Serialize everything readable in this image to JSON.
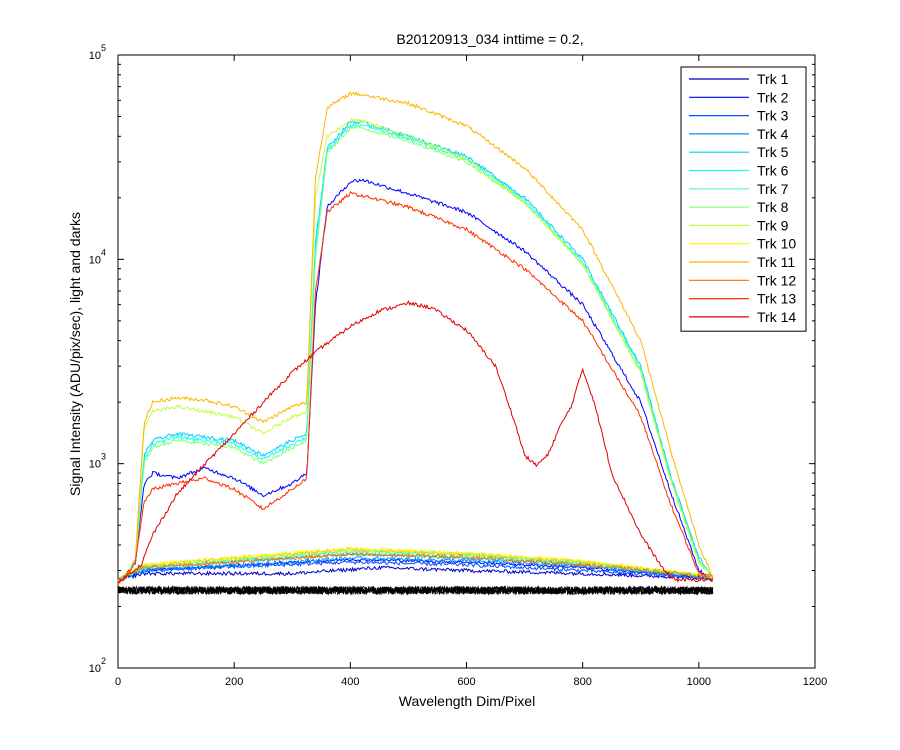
{
  "chart_data": {
    "type": "line",
    "title": "B20120913_034 inttime = 0.2,",
    "xlabel": "Wavelength Dim/Pixel",
    "ylabel": "Signal Intensity (ADU/pix/sec), light and darks",
    "xlim": [
      0,
      1200
    ],
    "ylim": [
      100,
      100000
    ],
    "yscale": "log",
    "grid": false,
    "legend_position": "top-right",
    "x_ticks": [
      "0",
      "200",
      "400",
      "600",
      "800",
      "1000",
      "1200"
    ],
    "y_ticks": [
      {
        "base": "10",
        "exp": "2"
      },
      {
        "base": "10",
        "exp": "3"
      },
      {
        "base": "10",
        "exp": "4"
      },
      {
        "base": "10",
        "exp": "5"
      }
    ],
    "series": [
      {
        "name": "Trk 1",
        "color": "#0000c8",
        "light_points": [
          [
            0,
            270
          ],
          [
            45,
            290
          ],
          [
            300,
            290
          ],
          [
            450,
            310
          ],
          [
            600,
            300
          ],
          [
            800,
            290
          ],
          [
            1024,
            275
          ]
        ]
      },
      {
        "name": "Trk 2",
        "color": "#0000ff",
        "light_points": [
          [
            0,
            260
          ],
          [
            20,
            300
          ],
          [
            30,
            330
          ],
          [
            45,
            800
          ],
          [
            60,
            900
          ],
          [
            100,
            850
          ],
          [
            150,
            950
          ],
          [
            200,
            850
          ],
          [
            250,
            700
          ],
          [
            300,
            800
          ],
          [
            325,
            900
          ],
          [
            340,
            6000
          ],
          [
            360,
            18000
          ],
          [
            400,
            24000
          ],
          [
            420,
            24500
          ],
          [
            500,
            21000
          ],
          [
            600,
            17000
          ],
          [
            700,
            11000
          ],
          [
            800,
            6000
          ],
          [
            900,
            2000
          ],
          [
            950,
            750
          ],
          [
            1000,
            300
          ],
          [
            1024,
            270
          ]
        ],
        "dark_points": [
          [
            0,
            270
          ],
          [
            45,
            300
          ],
          [
            400,
            340
          ],
          [
            600,
            330
          ],
          [
            800,
            310
          ],
          [
            1024,
            275
          ]
        ]
      },
      {
        "name": "Trk 3",
        "color": "#0050ff",
        "light_points": [
          [
            0,
            270
          ],
          [
            45,
            300
          ],
          [
            400,
            330
          ],
          [
            600,
            320
          ],
          [
            800,
            300
          ],
          [
            1024,
            275
          ]
        ]
      },
      {
        "name": "Trk 4",
        "color": "#0094ff",
        "light_points": [
          [
            0,
            270
          ],
          [
            45,
            300
          ],
          [
            400,
            345
          ],
          [
            600,
            335
          ],
          [
            800,
            315
          ],
          [
            1024,
            275
          ]
        ]
      },
      {
        "name": "Trk 5",
        "color": "#00d0ff",
        "light_points": [
          [
            0,
            260
          ],
          [
            20,
            300
          ],
          [
            30,
            330
          ],
          [
            45,
            1100
          ],
          [
            60,
            1300
          ],
          [
            100,
            1400
          ],
          [
            150,
            1350
          ],
          [
            200,
            1300
          ],
          [
            250,
            1100
          ],
          [
            300,
            1300
          ],
          [
            325,
            1400
          ],
          [
            340,
            12000
          ],
          [
            360,
            35000
          ],
          [
            400,
            47000
          ],
          [
            420,
            47000
          ],
          [
            500,
            40000
          ],
          [
            600,
            32000
          ],
          [
            700,
            20000
          ],
          [
            800,
            10000
          ],
          [
            900,
            3000
          ],
          [
            950,
            900
          ],
          [
            1000,
            350
          ],
          [
            1024,
            275
          ]
        ],
        "dark_points": [
          [
            0,
            270
          ],
          [
            45,
            310
          ],
          [
            400,
            360
          ],
          [
            600,
            345
          ],
          [
            800,
            320
          ],
          [
            1024,
            280
          ]
        ]
      },
      {
        "name": "Trk 6",
        "color": "#18ffe8",
        "light_points": [
          [
            0,
            260
          ],
          [
            20,
            300
          ],
          [
            30,
            330
          ],
          [
            45,
            1050
          ],
          [
            60,
            1250
          ],
          [
            100,
            1350
          ],
          [
            150,
            1300
          ],
          [
            200,
            1250
          ],
          [
            250,
            1050
          ],
          [
            300,
            1250
          ],
          [
            325,
            1350
          ],
          [
            340,
            11000
          ],
          [
            360,
            34000
          ],
          [
            400,
            45000
          ],
          [
            420,
            45500
          ],
          [
            500,
            39000
          ],
          [
            600,
            31000
          ],
          [
            700,
            19500
          ],
          [
            800,
            9700
          ],
          [
            900,
            2900
          ],
          [
            950,
            880
          ],
          [
            1000,
            340
          ],
          [
            1024,
            275
          ]
        ]
      },
      {
        "name": "Trk 7",
        "color": "#50ffb0",
        "light_points": [
          [
            0,
            270
          ],
          [
            45,
            310
          ],
          [
            400,
            370
          ],
          [
            600,
            355
          ],
          [
            800,
            325
          ],
          [
            1024,
            280
          ]
        ]
      },
      {
        "name": "Trk 8",
        "color": "#88ff78",
        "light_points": [
          [
            0,
            260
          ],
          [
            20,
            300
          ],
          [
            30,
            330
          ],
          [
            45,
            1000
          ],
          [
            60,
            1200
          ],
          [
            100,
            1300
          ],
          [
            150,
            1250
          ],
          [
            200,
            1200
          ],
          [
            250,
            1000
          ],
          [
            300,
            1200
          ],
          [
            325,
            1300
          ],
          [
            340,
            10000
          ],
          [
            360,
            33000
          ],
          [
            400,
            44000
          ],
          [
            420,
            44000
          ],
          [
            500,
            38000
          ],
          [
            600,
            30000
          ],
          [
            700,
            19000
          ],
          [
            800,
            9500
          ],
          [
            900,
            2800
          ],
          [
            950,
            860
          ],
          [
            1000,
            330
          ],
          [
            1024,
            275
          ]
        ],
        "dark_points": [
          [
            0,
            270
          ],
          [
            45,
            315
          ],
          [
            400,
            375
          ],
          [
            600,
            360
          ],
          [
            800,
            330
          ],
          [
            1024,
            280
          ]
        ]
      },
      {
        "name": "Trk 9",
        "color": "#c0ff40",
        "light_points": [
          [
            0,
            260
          ],
          [
            20,
            300
          ],
          [
            30,
            340
          ],
          [
            45,
            1500
          ],
          [
            60,
            1800
          ],
          [
            100,
            1900
          ],
          [
            150,
            1800
          ],
          [
            200,
            1700
          ],
          [
            250,
            1400
          ],
          [
            300,
            1700
          ],
          [
            325,
            1800
          ],
          [
            340,
            20000
          ],
          [
            360,
            40000
          ],
          [
            400,
            48000
          ],
          [
            420,
            47500
          ],
          [
            500,
            40000
          ],
          [
            600,
            31000
          ],
          [
            700,
            19000
          ],
          [
            800,
            9500
          ],
          [
            900,
            2800
          ],
          [
            950,
            860
          ],
          [
            1000,
            330
          ],
          [
            1024,
            275
          ]
        ]
      },
      {
        "name": "Trk 10",
        "color": "#f8f800",
        "light_points": [
          [
            0,
            270
          ],
          [
            45,
            320
          ],
          [
            400,
            385
          ],
          [
            600,
            365
          ],
          [
            800,
            335
          ],
          [
            1024,
            280
          ]
        ]
      },
      {
        "name": "Trk 11",
        "color": "#ffb400",
        "light_points": [
          [
            0,
            260
          ],
          [
            20,
            300
          ],
          [
            30,
            340
          ],
          [
            45,
            1600
          ],
          [
            60,
            2000
          ],
          [
            100,
            2100
          ],
          [
            150,
            2050
          ],
          [
            200,
            1900
          ],
          [
            250,
            1600
          ],
          [
            300,
            1900
          ],
          [
            325,
            2000
          ],
          [
            340,
            25000
          ],
          [
            360,
            55000
          ],
          [
            400,
            65000
          ],
          [
            420,
            64000
          ],
          [
            500,
            58000
          ],
          [
            600,
            45000
          ],
          [
            700,
            28000
          ],
          [
            800,
            14000
          ],
          [
            900,
            4000
          ],
          [
            950,
            1200
          ],
          [
            1000,
            400
          ],
          [
            1024,
            280
          ]
        ],
        "dark_points": [
          [
            0,
            270
          ],
          [
            45,
            320
          ],
          [
            400,
            380
          ],
          [
            600,
            362
          ],
          [
            800,
            332
          ],
          [
            1024,
            280
          ]
        ]
      },
      {
        "name": "Trk 12",
        "color": "#ff7000",
        "light_points": [
          [
            0,
            270
          ],
          [
            45,
            310
          ],
          [
            400,
            360
          ],
          [
            600,
            350
          ],
          [
            800,
            320
          ],
          [
            1024,
            280
          ]
        ]
      },
      {
        "name": "Trk 13",
        "color": "#ff3000",
        "light_points": [
          [
            0,
            260
          ],
          [
            20,
            300
          ],
          [
            30,
            330
          ],
          [
            45,
            650
          ],
          [
            60,
            750
          ],
          [
            100,
            800
          ],
          [
            150,
            850
          ],
          [
            200,
            750
          ],
          [
            250,
            600
          ],
          [
            300,
            750
          ],
          [
            325,
            850
          ],
          [
            340,
            7000
          ],
          [
            360,
            17000
          ],
          [
            400,
            21000
          ],
          [
            420,
            20500
          ],
          [
            500,
            18000
          ],
          [
            600,
            14000
          ],
          [
            700,
            9000
          ],
          [
            800,
            5000
          ],
          [
            900,
            1700
          ],
          [
            950,
            650
          ],
          [
            1000,
            290
          ],
          [
            1024,
            270
          ]
        ]
      },
      {
        "name": "Trk 14",
        "color": "#e00000",
        "light_points": [
          [
            0,
            260
          ],
          [
            20,
            290
          ],
          [
            40,
            320
          ],
          [
            60,
            450
          ],
          [
            100,
            700
          ],
          [
            150,
            1000
          ],
          [
            200,
            1400
          ],
          [
            250,
            2000
          ],
          [
            300,
            2800
          ],
          [
            350,
            3700
          ],
          [
            400,
            4700
          ],
          [
            450,
            5600
          ],
          [
            500,
            6100
          ],
          [
            540,
            5800
          ],
          [
            600,
            4500
          ],
          [
            650,
            3000
          ],
          [
            680,
            1700
          ],
          [
            700,
            1100
          ],
          [
            720,
            980
          ],
          [
            740,
            1100
          ],
          [
            760,
            1500
          ],
          [
            780,
            1900
          ],
          [
            800,
            2900
          ],
          [
            820,
            2000
          ],
          [
            850,
            900
          ],
          [
            900,
            450
          ],
          [
            940,
            300
          ],
          [
            960,
            270
          ],
          [
            1024,
            270
          ]
        ]
      }
    ],
    "dark_floor": {
      "color": "#000000",
      "points": [
        [
          0,
          240
        ],
        [
          1024,
          240
        ]
      ]
    }
  }
}
